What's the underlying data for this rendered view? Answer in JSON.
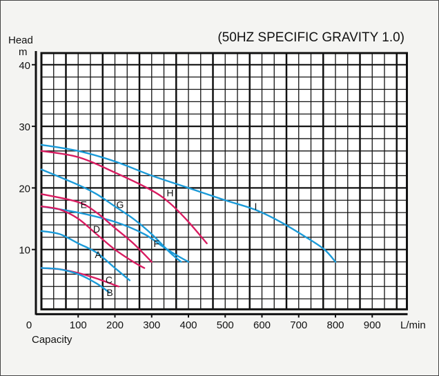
{
  "chart_data": {
    "type": "line",
    "title": "(50HZ SPECIFIC GRAVITY 1.0)",
    "xlabel": "Capacity",
    "xunit": "L/min",
    "ylabel": "Head",
    "yunit": "m",
    "xlim": [
      0,
      1000
    ],
    "ylim": [
      0,
      42
    ],
    "xticks": [
      0,
      100,
      200,
      300,
      400,
      500,
      600,
      700,
      800,
      900
    ],
    "yticks": [
      10,
      20,
      30,
      40
    ],
    "grid": true,
    "colors": {
      "blue": "#1a9ad8",
      "red": "#d81b60"
    },
    "series": [
      {
        "name": "I",
        "color": "#1a9ad8",
        "label_at": [
          583,
          17
        ],
        "points": [
          [
            0,
            27
          ],
          [
            100,
            26
          ],
          [
            200,
            24.3
          ],
          [
            300,
            22
          ],
          [
            400,
            20
          ],
          [
            500,
            18
          ],
          [
            580,
            16.5
          ],
          [
            650,
            14.5
          ],
          [
            720,
            12
          ],
          [
            770,
            10
          ],
          [
            800,
            8
          ]
        ]
      },
      {
        "name": "H",
        "color": "#d81b60",
        "label_at": [
          350,
          19.2
        ],
        "points": [
          [
            0,
            26
          ],
          [
            100,
            25
          ],
          [
            200,
            22.5
          ],
          [
            300,
            19.6
          ],
          [
            350,
            17.5
          ],
          [
            400,
            14.5
          ],
          [
            450,
            11
          ]
        ]
      },
      {
        "name": "G",
        "color": "#1a9ad8",
        "label_at": [
          214,
          17.3
        ],
        "points": [
          [
            0,
            23
          ],
          [
            100,
            20.5
          ],
          [
            150,
            19
          ],
          [
            200,
            17
          ],
          [
            250,
            15
          ],
          [
            300,
            12.5
          ],
          [
            350,
            9.5
          ],
          [
            380,
            8
          ]
        ]
      },
      {
        "name": "F",
        "color": "#1a9ad8",
        "label_at": [
          313,
          11
        ],
        "points": [
          [
            0,
            17
          ],
          [
            100,
            16
          ],
          [
            200,
            14.5
          ],
          [
            280,
            12.5
          ],
          [
            330,
            10.5
          ],
          [
            370,
            9
          ],
          [
            400,
            8
          ]
        ]
      },
      {
        "name": "E",
        "color": "#d81b60",
        "label_at": [
          115,
          17.3
        ],
        "points": [
          [
            0,
            19
          ],
          [
            100,
            17.7
          ],
          [
            150,
            16
          ],
          [
            200,
            13.5
          ],
          [
            250,
            11
          ],
          [
            300,
            8
          ]
        ]
      },
      {
        "name": "D",
        "color": "#d81b60",
        "label_at": [
          150,
          13.3
        ],
        "points": [
          [
            0,
            17
          ],
          [
            50,
            16.5
          ],
          [
            100,
            15
          ],
          [
            150,
            12.5
          ],
          [
            200,
            10
          ],
          [
            250,
            8
          ],
          [
            280,
            7
          ]
        ]
      },
      {
        "name": "A",
        "color": "#1a9ad8",
        "label_at": [
          154,
          9.2
        ],
        "points": [
          [
            0,
            13
          ],
          [
            50,
            12.5
          ],
          [
            100,
            11
          ],
          [
            150,
            9.5
          ],
          [
            200,
            7
          ],
          [
            240,
            5
          ]
        ]
      },
      {
        "name": "C",
        "color": "#d81b60",
        "label_at": [
          184,
          5.1
        ],
        "points": [
          [
            0,
            7
          ],
          [
            50,
            6.8
          ],
          [
            100,
            6.2
          ],
          [
            150,
            5.3
          ],
          [
            210,
            4
          ]
        ]
      },
      {
        "name": "B",
        "color": "#1a9ad8",
        "label_at": [
          186,
          3
        ],
        "points": [
          [
            0,
            7
          ],
          [
            50,
            6.8
          ],
          [
            100,
            6
          ],
          [
            150,
            4.5
          ],
          [
            185,
            3
          ]
        ]
      }
    ]
  }
}
